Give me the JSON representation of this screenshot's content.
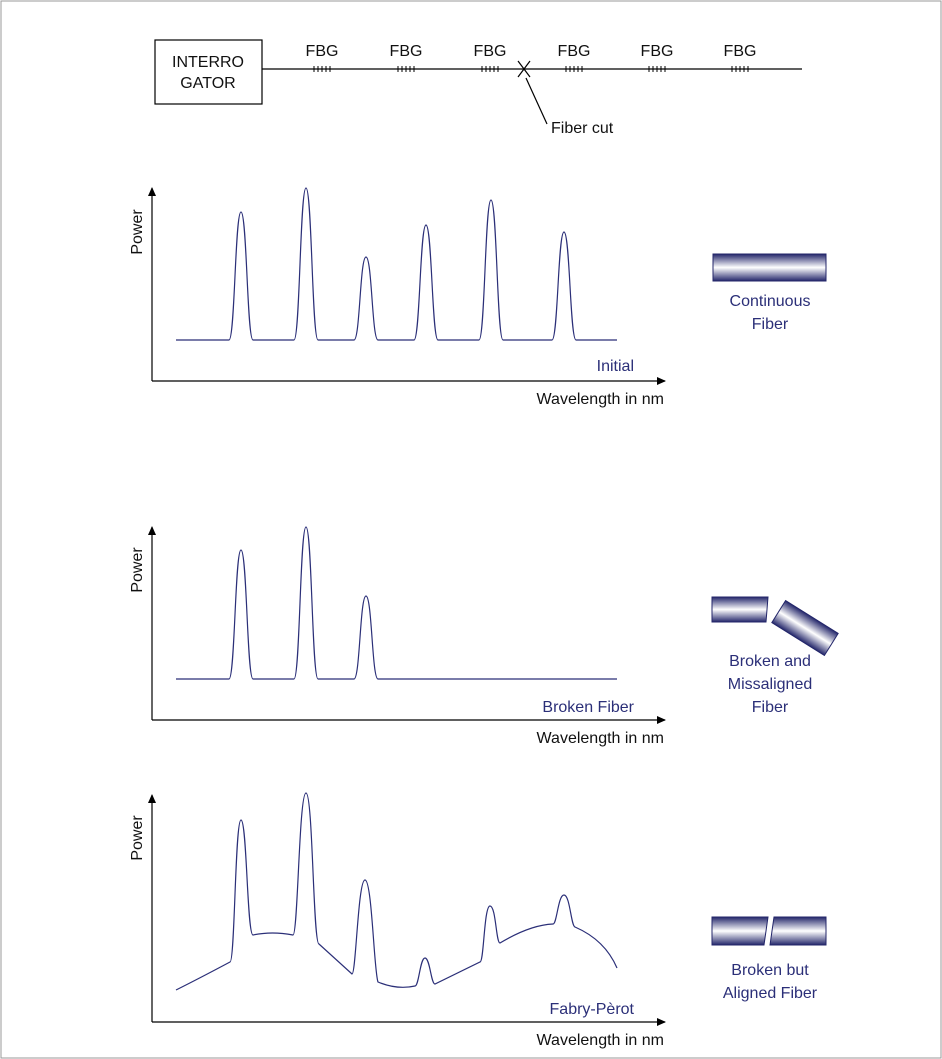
{
  "header": {
    "interrogator": [
      "INTERRO",
      "GATOR"
    ],
    "fbg_labels": [
      "FBG",
      "FBG",
      "FBG",
      "FBG",
      "FBG",
      "FBG"
    ],
    "fiber_cut": "Fiber cut"
  },
  "panels": [
    {
      "y_label": "Power",
      "x_label": "Wavelength in nm",
      "curve_label": "Initial",
      "fiber_label": [
        "Continuous",
        "Fiber"
      ]
    },
    {
      "y_label": "Power",
      "x_label": "Wavelength in nm",
      "curve_label": "Broken Fiber",
      "fiber_label": [
        "Broken and",
        "Missaligned",
        "Fiber"
      ]
    },
    {
      "y_label": "Power",
      "x_label": "Wavelength in nm",
      "curve_label": "Fabry-Pèrot",
      "fiber_label": [
        "Broken but",
        "Aligned Fiber"
      ]
    }
  ]
}
